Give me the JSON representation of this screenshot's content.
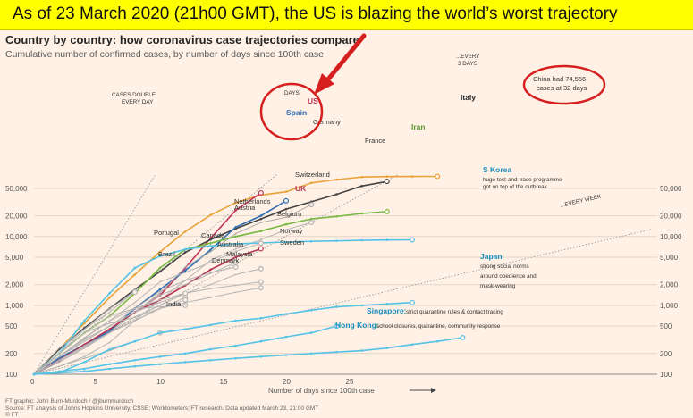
{
  "banner": {
    "text": "As of 23 March 2020 (21h00 GMT), the US is blazing the world’s worst trajectory"
  },
  "chart_data": {
    "type": "line",
    "title": "Country by country: how coronavirus case trajectories compare",
    "subtitle": "Cumulative number of confirmed cases, by number of days since 100th case",
    "xlabel": "Number of days since 100th case",
    "x_ticks": [
      0,
      5,
      10,
      15,
      20,
      25
    ],
    "y_scale": "log",
    "y_ticks": [
      100,
      200,
      500,
      1000,
      2000,
      5000,
      10000,
      20000,
      50000
    ],
    "y_tick_labels": [
      "100",
      "200",
      "500",
      "1,000",
      "2,000",
      "5,000",
      "10,000",
      "20,000",
      "50,000"
    ],
    "xlim": [
      0,
      35
    ],
    "ylim": [
      100,
      80000
    ],
    "guides": [
      {
        "label": "CASES DOUBLE EVERY DAY",
        "doubling_days": 1
      },
      {
        "label": "...EVERY 2 DAYS",
        "doubling_days": 2
      },
      {
        "label": "...EVERY 3 DAYS",
        "doubling_days": 3
      },
      {
        "label": "...EVERY WEEK",
        "doubling_days": 7
      }
    ],
    "series": [
      {
        "name": "China",
        "color": "#e8a33a",
        "x": [
          0,
          2,
          4,
          6,
          8,
          10,
          12,
          14,
          16,
          18,
          20,
          22,
          24,
          26,
          28,
          30,
          32
        ],
        "y": [
          100,
          230,
          550,
          1300,
          2800,
          6000,
          11800,
          20500,
          31000,
          40000,
          44700,
          60000,
          67000,
          73000,
          74200,
          74400,
          74556
        ]
      },
      {
        "name": "US",
        "color": "#c0345b",
        "x": [
          0,
          2,
          4,
          6,
          8,
          10,
          12,
          14,
          16,
          18
        ],
        "y": [
          100,
          160,
          270,
          450,
          800,
          1400,
          3500,
          9400,
          24000,
          43000
        ]
      },
      {
        "name": "Italy",
        "color": "#444444",
        "x": [
          0,
          2,
          4,
          6,
          8,
          10,
          12,
          14,
          16,
          18,
          20,
          22,
          24,
          26,
          28
        ],
        "y": [
          100,
          230,
          470,
          900,
          1700,
          3100,
          5900,
          9000,
          13000,
          18000,
          25000,
          32000,
          41000,
          54000,
          63000
        ]
      },
      {
        "name": "Spain",
        "color": "#2f6db5",
        "x": [
          0,
          2,
          4,
          6,
          8,
          10,
          12,
          14,
          16,
          18,
          20
        ],
        "y": [
          100,
          170,
          270,
          420,
          900,
          1700,
          3200,
          6400,
          13700,
          20000,
          33000
        ]
      },
      {
        "name": "Germany",
        "color": "#aaaaaa",
        "x": [
          0,
          2,
          4,
          6,
          8,
          10,
          12,
          14,
          16,
          18,
          20,
          22
        ],
        "y": [
          100,
          150,
          240,
          400,
          800,
          1500,
          3600,
          6000,
          11000,
          16000,
          19000,
          29000
        ]
      },
      {
        "name": "Iran",
        "color": "#78b943",
        "x": [
          0,
          2,
          4,
          6,
          8,
          10,
          12,
          14,
          16,
          18,
          20,
          22,
          24,
          26,
          28
        ],
        "y": [
          100,
          200,
          400,
          700,
          1500,
          3500,
          6500,
          8000,
          10000,
          12000,
          15000,
          18000,
          19600,
          21600,
          23000
        ]
      },
      {
        "name": "France",
        "color": "#b5b5b5",
        "x": [
          0,
          2,
          4,
          6,
          8,
          10,
          12,
          14,
          16,
          18,
          20,
          22
        ],
        "y": [
          100,
          130,
          180,
          290,
          600,
          1200,
          2300,
          4500,
          6600,
          9000,
          12600,
          16000
        ]
      },
      {
        "name": "S Korea",
        "color": "#55c3e6",
        "x": [
          0,
          2,
          4,
          6,
          8,
          10,
          12,
          14,
          16,
          18,
          20,
          22,
          24,
          26,
          28,
          30
        ],
        "y": [
          100,
          200,
          600,
          1500,
          3500,
          5200,
          6500,
          7300,
          7800,
          8100,
          8300,
          8500,
          8650,
          8800,
          8900,
          8960
        ]
      },
      {
        "name": "Switzerland",
        "color": "#b5b5b5",
        "x": [
          0,
          2,
          4,
          6,
          8,
          10,
          12,
          14,
          16,
          18
        ],
        "y": [
          100,
          180,
          340,
          600,
          1100,
          2200,
          3000,
          4200,
          6100,
          8000
        ]
      },
      {
        "name": "UK",
        "color": "#b33654",
        "x": [
          0,
          2,
          4,
          6,
          8,
          10,
          12,
          14,
          16,
          18
        ],
        "y": [
          100,
          160,
          270,
          450,
          800,
          1200,
          1950,
          3300,
          5000,
          6650
        ]
      },
      {
        "name": "Netherlands",
        "color": "#b5b5b5",
        "x": [
          0,
          2,
          4,
          6,
          8,
          10,
          12,
          14,
          16
        ],
        "y": [
          100,
          180,
          320,
          500,
          800,
          1400,
          2000,
          2900,
          4200
        ]
      },
      {
        "name": "Austria",
        "color": "#b5b5b5",
        "x": [
          0,
          2,
          4,
          6,
          8,
          10,
          12,
          14,
          16
        ],
        "y": [
          100,
          180,
          300,
          500,
          900,
          1600,
          2300,
          3000,
          3600
        ]
      },
      {
        "name": "Belgium",
        "color": "#b5b5b5",
        "x": [
          0,
          2,
          4,
          6,
          8,
          10,
          12,
          14,
          16,
          18
        ],
        "y": [
          100,
          160,
          250,
          400,
          680,
          1000,
          1500,
          2000,
          2800,
          3400
        ]
      },
      {
        "name": "Norway",
        "color": "#b5b5b5",
        "x": [
          0,
          2,
          4,
          6,
          8,
          10,
          12,
          14,
          16,
          18
        ],
        "y": [
          100,
          180,
          330,
          600,
          900,
          1200,
          1500,
          1750,
          1950,
          2200
        ]
      },
      {
        "name": "Sweden",
        "color": "#b5b5b5",
        "x": [
          0,
          2,
          4,
          6,
          8,
          10,
          12,
          14,
          16,
          18
        ],
        "y": [
          100,
          160,
          260,
          400,
          600,
          900,
          1100,
          1300,
          1550,
          1800
        ]
      },
      {
        "name": "Portugal",
        "color": "#b5b5b5",
        "x": [
          0,
          2,
          4,
          6,
          8
        ],
        "y": [
          100,
          240,
          450,
          800,
          1600
        ]
      },
      {
        "name": "Canada",
        "color": "#b5b5b5",
        "x": [
          0,
          2,
          4,
          6,
          8,
          10,
          12
        ],
        "y": [
          100,
          180,
          300,
          500,
          800,
          1100,
          1500
        ]
      },
      {
        "name": "Australia",
        "color": "#b5b5b5",
        "x": [
          0,
          2,
          4,
          6,
          8,
          10,
          12
        ],
        "y": [
          100,
          160,
          250,
          400,
          600,
          900,
          1300
        ]
      },
      {
        "name": "Malaysia",
        "color": "#b5b5b5",
        "x": [
          0,
          2,
          4,
          6,
          8,
          10,
          12
        ],
        "y": [
          100,
          200,
          400,
          550,
          670,
          900,
          1200
        ]
      },
      {
        "name": "Denmark",
        "color": "#b5b5b5",
        "x": [
          0,
          2,
          4,
          6,
          8,
          10,
          12
        ],
        "y": [
          100,
          200,
          400,
          700,
          900,
          950,
          1000
        ]
      },
      {
        "name": "Brazil",
        "color": "#b5b5b5",
        "x": [
          0,
          2,
          4,
          6,
          8
        ],
        "y": [
          100,
          200,
          450,
          900,
          1550
        ]
      },
      {
        "name": "India",
        "color": "#b5b5b5",
        "x": [
          0,
          2,
          4,
          6,
          8,
          10
        ],
        "y": [
          100,
          130,
          170,
          220,
          300,
          400
        ]
      },
      {
        "name": "Japan",
        "color": "#55c3e6",
        "x": [
          0,
          2,
          4,
          6,
          8,
          10,
          12,
          14,
          16,
          18,
          20,
          22,
          24,
          26,
          28,
          30
        ],
        "y": [
          100,
          105,
          150,
          230,
          300,
          400,
          450,
          520,
          600,
          650,
          750,
          850,
          950,
          1000,
          1050,
          1100
        ]
      },
      {
        "name": "Singapore",
        "color": "#55c3e6",
        "x": [
          0,
          2,
          4,
          6,
          8,
          10,
          12,
          14,
          16,
          18,
          20,
          22,
          24
        ],
        "y": [
          100,
          110,
          120,
          140,
          160,
          180,
          200,
          230,
          260,
          300,
          350,
          400,
          500
        ]
      },
      {
        "name": "Hong Kong",
        "color": "#55c3e6",
        "x": [
          0,
          2,
          4,
          6,
          8,
          10,
          12,
          14,
          16,
          18,
          20,
          22,
          24,
          26,
          28,
          30,
          32,
          34
        ],
        "y": [
          100,
          105,
          110,
          120,
          130,
          140,
          150,
          160,
          170,
          180,
          190,
          200,
          210,
          220,
          240,
          270,
          300,
          340
        ]
      }
    ],
    "labels": [
      {
        "text": "China had 74,556",
        "color": "#c00000"
      },
      {
        "text": "cases at 32 days",
        "color": "#c00000"
      },
      {
        "text": "US",
        "color": "#c0345b"
      },
      {
        "text": "Italy",
        "color": "#222"
      },
      {
        "text": "Spain",
        "color": "#2f6db5"
      },
      {
        "text": "Germany",
        "color": "#555"
      },
      {
        "text": "Iran",
        "color": "#5a9a2e"
      },
      {
        "text": "France",
        "color": "#555"
      },
      {
        "text": "S Korea",
        "color": "#1a8fc0"
      },
      {
        "text": "huge test-and-trace programme",
        "color": "#333"
      },
      {
        "text": "got on top of the outbreak",
        "color": "#333"
      },
      {
        "text": "Switzerland",
        "color": "#555"
      },
      {
        "text": "UK",
        "color": "#b33654"
      },
      {
        "text": "Netherlands",
        "color": "#555"
      },
      {
        "text": "Austria",
        "color": "#555"
      },
      {
        "text": "Belgium",
        "color": "#555"
      },
      {
        "text": "Norway",
        "color": "#555"
      },
      {
        "text": "Sweden",
        "color": "#555"
      },
      {
        "text": "Portugal",
        "color": "#555"
      },
      {
        "text": "Canada",
        "color": "#555"
      },
      {
        "text": "Australia",
        "color": "#555"
      },
      {
        "text": "Malaysia",
        "color": "#555"
      },
      {
        "text": "Denmark",
        "color": "#555"
      },
      {
        "text": "Brazil",
        "color": "#555"
      },
      {
        "text": "India",
        "color": "#555"
      },
      {
        "text": "Japan",
        "color": "#1a8fc0"
      },
      {
        "text": "strong social norms",
        "color": "#333"
      },
      {
        "text": "around obedience and",
        "color": "#333"
      },
      {
        "text": "mask-wearing",
        "color": "#333"
      },
      {
        "text": "Singapore:",
        "color": "#1a8fc0"
      },
      {
        "text": "strict quarantine rules & contact tracing",
        "color": "#333"
      },
      {
        "text": "Hong Kong:",
        "color": "#1a8fc0"
      },
      {
        "text": "school closures, quarantine, community response",
        "color": "#333"
      },
      {
        "text": "DAYS",
        "color": "#555"
      }
    ]
  },
  "footer": {
    "line1": "FT graphic: John Burn-Murdoch / @jburnmurdoch",
    "line2": "Source: FT analysis of Johns Hopkins University, CSSE; Worldometers; FT research. Data updated March 23, 21:00 GMT",
    "line3": "© FT"
  },
  "colors": {
    "banner": "#ffff00",
    "background": "#fff1e5",
    "highlight": "#d62020"
  }
}
